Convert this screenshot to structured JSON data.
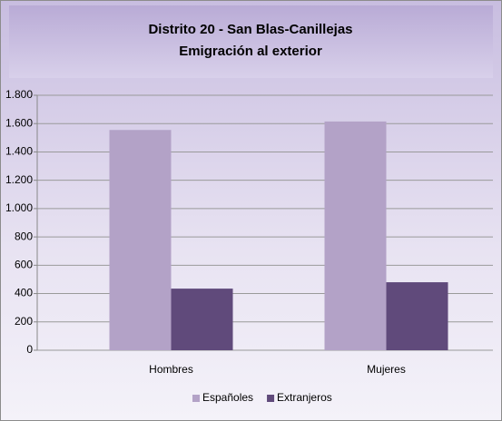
{
  "chart_data": {
    "type": "bar",
    "title": "Distrito 20 - San Blas-Canillejas",
    "subtitle": "Emigración al exterior",
    "categories": [
      "Hombres",
      "Mujeres"
    ],
    "series": [
      {
        "name": "Españoles",
        "color": "#b3a2c7",
        "values": [
          1555,
          1615
        ]
      },
      {
        "name": "Extranjeros",
        "color": "#604a7b",
        "values": [
          435,
          480
        ]
      }
    ],
    "ylim": [
      0,
      1800
    ],
    "yticks": [
      0,
      200,
      400,
      600,
      800,
      {
        "value": 1000,
        "label": "1.000"
      },
      {
        "value": 1200,
        "label": "1.200"
      },
      {
        "value": 1400,
        "label": "1.400"
      },
      {
        "value": 1600,
        "label": "1.600"
      },
      {
        "value": 1800,
        "label": "1.800"
      }
    ],
    "grid": true,
    "legend": "bottom"
  }
}
